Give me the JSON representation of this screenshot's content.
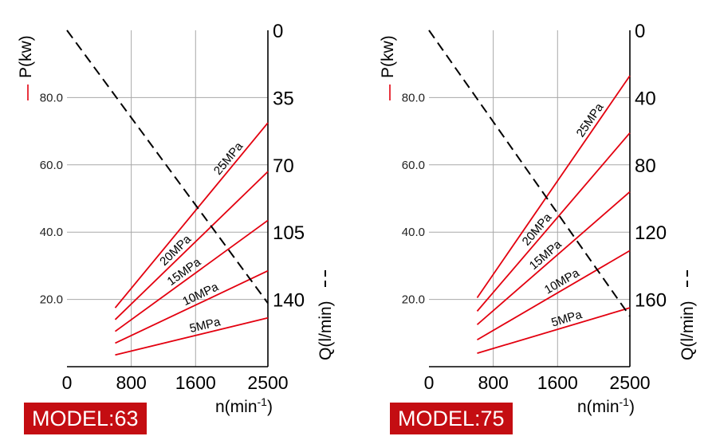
{
  "colors": {
    "power_line": "#e3000f",
    "flow_line": "#000000",
    "grid": "#a8a8a8",
    "badge": "#c40d12"
  },
  "chart_data": [
    {
      "type": "line",
      "model_label": "MODEL:63",
      "left_axis": {
        "label": "P(kw)",
        "ticks": [
          "20.0",
          "40.0",
          "60.0",
          "80.0"
        ],
        "tick_values": [
          20,
          40,
          60,
          80
        ],
        "range": [
          0,
          100
        ]
      },
      "right_axis": {
        "label": "Q(l/min)",
        "ticks": [
          "0",
          "35",
          "70",
          "105",
          "140"
        ],
        "tick_values": [
          0,
          35,
          70,
          105,
          140
        ],
        "range": [
          0,
          175
        ],
        "inverted": true
      },
      "x_axis": {
        "label": "n(min",
        "label_superscript": "-1",
        "label_close": ")",
        "ticks": [
          "0",
          "800",
          "1600",
          "2500"
        ],
        "tick_values": [
          0,
          800,
          1600,
          2500
        ],
        "range": [
          0,
          2500
        ]
      },
      "series": [
        {
          "name": "5MPa",
          "axis": "P",
          "x": [
            600,
            2500
          ],
          "y": [
            3.5,
            14.5
          ]
        },
        {
          "name": "10MPa",
          "axis": "P",
          "x": [
            600,
            2500
          ],
          "y": [
            7.0,
            28.5
          ]
        },
        {
          "name": "15MPa",
          "axis": "P",
          "x": [
            600,
            2500
          ],
          "y": [
            10.5,
            43.5
          ]
        },
        {
          "name": "20MPa",
          "axis": "P",
          "x": [
            600,
            2500
          ],
          "y": [
            14.0,
            58.0
          ]
        },
        {
          "name": "25MPa",
          "axis": "P",
          "x": [
            600,
            2500
          ],
          "y": [
            17.5,
            72.5
          ]
        },
        {
          "name": "",
          "axis": "Q",
          "style": "dashed",
          "x": [
            0,
            2500
          ],
          "y": [
            0,
            142
          ]
        }
      ]
    },
    {
      "type": "line",
      "model_label": "MODEL:75",
      "left_axis": {
        "label": "P(kw)",
        "ticks": [
          "20.0",
          "40.0",
          "60.0",
          "80.0"
        ],
        "tick_values": [
          20,
          40,
          60,
          80
        ],
        "range": [
          0,
          100
        ]
      },
      "right_axis": {
        "label": "Q(l/min)",
        "ticks": [
          "0",
          "40",
          "80",
          "120",
          "160"
        ],
        "tick_values": [
          0,
          40,
          80,
          120,
          160
        ],
        "range": [
          0,
          200
        ],
        "inverted": true
      },
      "x_axis": {
        "label": "n(min",
        "label_superscript": "-1",
        "label_close": ")",
        "ticks": [
          "0",
          "800",
          "1600",
          "2500"
        ],
        "tick_values": [
          0,
          800,
          1600,
          2500
        ],
        "range": [
          0,
          2500
        ]
      },
      "series": [
        {
          "name": "5MPa",
          "axis": "P",
          "x": [
            600,
            2500
          ],
          "y": [
            4.0,
            17.5
          ]
        },
        {
          "name": "10MPa",
          "axis": "P",
          "x": [
            600,
            2500
          ],
          "y": [
            8.0,
            34.5
          ]
        },
        {
          "name": "15MPa",
          "axis": "P",
          "x": [
            600,
            2500
          ],
          "y": [
            12.5,
            52.0
          ]
        },
        {
          "name": "20MPa",
          "axis": "P",
          "x": [
            600,
            2500
          ],
          "y": [
            16.5,
            69.5
          ]
        },
        {
          "name": "25MPa",
          "axis": "P",
          "x": [
            600,
            2500
          ],
          "y": [
            20.5,
            86.5
          ]
        },
        {
          "name": "",
          "axis": "Q",
          "style": "dashed",
          "x": [
            0,
            2500
          ],
          "y": [
            0,
            170
          ]
        }
      ]
    }
  ]
}
